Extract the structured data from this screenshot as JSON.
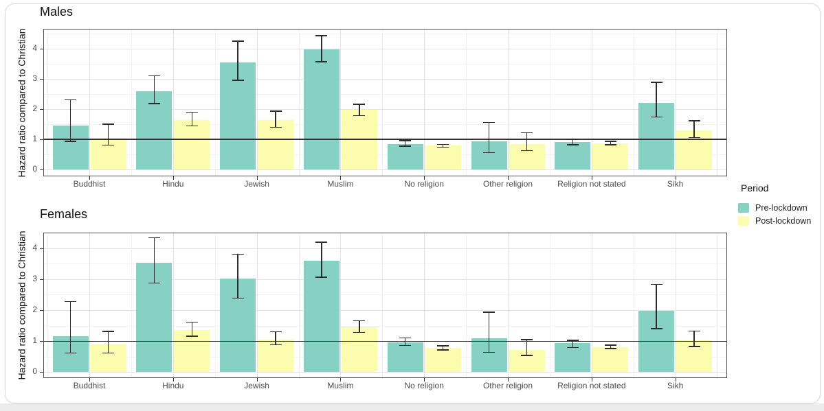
{
  "chart_data": {
    "type": "bar",
    "title": "",
    "xlabel": "",
    "ylabel": "Hazard ratio compared to Christian",
    "categories": [
      "Buddhist",
      "Hindu",
      "Jewish",
      "Muslim",
      "No religion",
      "Other religion",
      "Religion not stated",
      "Sikh"
    ],
    "yticks": [
      0,
      1,
      2,
      3,
      4
    ],
    "reference_line": 1.0,
    "grid": true,
    "error_bars": true,
    "legend": {
      "title": "Period",
      "position": "right",
      "entries": [
        {
          "label": "Pre-lockdown",
          "color": "#86D1C3"
        },
        {
          "label": "Post-lockdown",
          "color": "#FCFCAF"
        }
      ]
    },
    "facets": [
      {
        "label": "Males",
        "ylim": [
          -0.23,
          4.66
        ],
        "series": [
          {
            "name": "Pre-lockdown",
            "color": "#86D1C3",
            "values": [
              1.45,
              2.6,
              3.55,
              3.97,
              0.84,
              0.93,
              0.9,
              2.21
            ],
            "ci_low": [
              0.93,
              2.18,
              2.95,
              3.57,
              0.77,
              0.56,
              0.82,
              1.74
            ],
            "ci_high": [
              2.3,
              3.1,
              4.25,
              4.43,
              0.95,
              1.55,
              1.0,
              2.89
            ]
          },
          {
            "name": "Post-lockdown",
            "color": "#FCFCAF",
            "values": [
              1.05,
              1.63,
              1.63,
              1.98,
              0.79,
              0.85,
              0.87,
              1.29
            ],
            "ci_low": [
              0.81,
              1.44,
              1.4,
              1.78,
              0.74,
              0.62,
              0.82,
              1.06
            ],
            "ci_high": [
              1.5,
              1.9,
              1.93,
              2.16,
              0.83,
              1.22,
              0.93,
              1.61
            ]
          }
        ]
      },
      {
        "label": "Females",
        "ylim": [
          -0.19,
          4.5
        ],
        "series": [
          {
            "name": "Pre-lockdown",
            "color": "#86D1C3",
            "values": [
              1.17,
              3.53,
              3.01,
              3.59,
              0.97,
              1.09,
              0.93,
              1.98
            ],
            "ci_low": [
              0.62,
              2.87,
              2.39,
              3.06,
              0.86,
              0.64,
              0.8,
              1.4
            ],
            "ci_high": [
              2.27,
              4.33,
              3.8,
              4.19,
              1.1,
              1.93,
              1.03,
              2.83
            ]
          },
          {
            "name": "Post-lockdown",
            "color": "#FCFCAF",
            "values": [
              0.89,
              1.35,
              1.05,
              1.45,
              0.79,
              0.72,
              0.81,
              1.03
            ],
            "ci_low": [
              0.62,
              1.16,
              0.88,
              1.28,
              0.72,
              0.54,
              0.76,
              0.83
            ],
            "ci_high": [
              1.31,
              1.61,
              1.3,
              1.66,
              0.85,
              1.05,
              0.87,
              1.33
            ]
          }
        ]
      }
    ]
  }
}
